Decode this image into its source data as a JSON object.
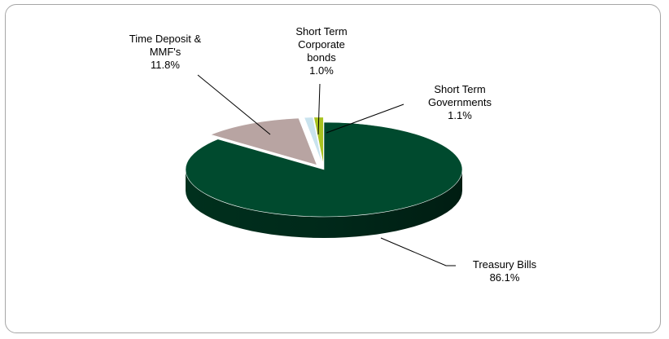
{
  "chart_data": {
    "type": "pie",
    "title": "",
    "style": "3d-exploded",
    "slices": [
      {
        "name": "Treasury Bills",
        "value": 86.1,
        "label": "86.1%",
        "color": "#004a2e"
      },
      {
        "name": "Time Deposit & MMF's",
        "value": 11.8,
        "label": "11.8%",
        "color": "#b8a4a2"
      },
      {
        "name": "Short Term Corporate bonds",
        "value": 1.0,
        "label": "1.0%",
        "color": "#c9e3ee"
      },
      {
        "name": "Short Term Governments",
        "value": 1.1,
        "label": "1.1%",
        "color": "#a8c21f"
      }
    ]
  },
  "labels": {
    "time_deposit": {
      "line1": "Time Deposit &",
      "line2": "MMF's",
      "pct": "11.8%"
    },
    "corporate": {
      "line1": "Short Term",
      "line2": "Corporate",
      "line3": "bonds",
      "pct": "1.0%"
    },
    "governments": {
      "line1": "Short Term",
      "line2": "Governments",
      "pct": "1.1%"
    },
    "treasury": {
      "line1": "Treasury Bills",
      "pct": "86.1%"
    }
  }
}
